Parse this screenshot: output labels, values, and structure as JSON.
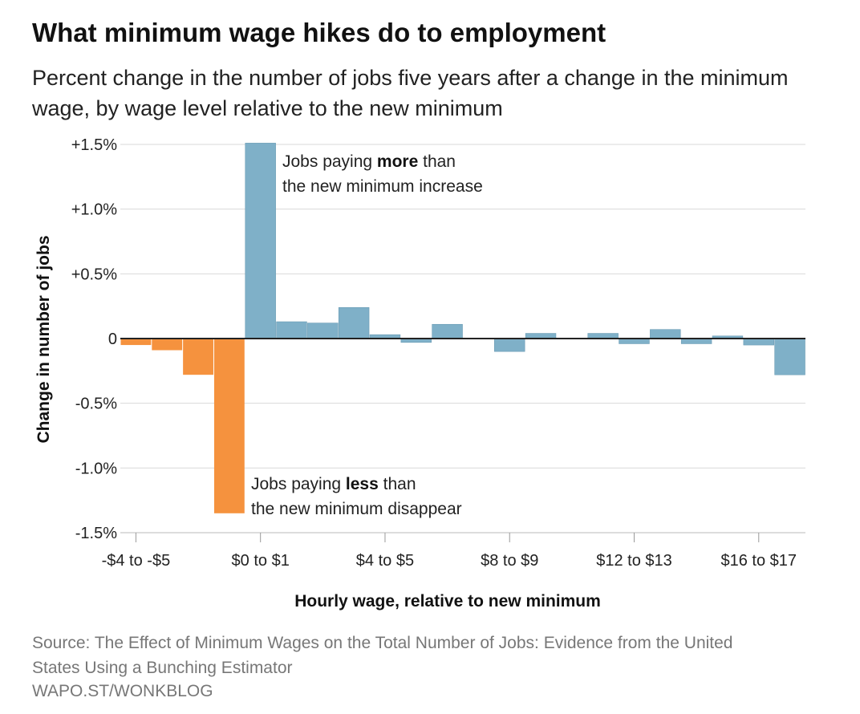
{
  "chart_data": {
    "type": "bar",
    "title": "What minimum wage hikes do to employment",
    "subtitle": "Percent change in the number of jobs five years after a change in the minimum wage, by wage level relative to the new minimum",
    "xlabel": "Hourly wage, relative to new minimum",
    "ylabel": "Change in number of jobs",
    "ylim": [
      -1.5,
      1.5
    ],
    "y_ticks": [
      {
        "value": 1.5,
        "label": "+1.5%"
      },
      {
        "value": 1.0,
        "label": "+1.0%"
      },
      {
        "value": 0.5,
        "label": "+0.5%"
      },
      {
        "value": 0,
        "label": "0"
      },
      {
        "value": -0.5,
        "label": "-0.5%"
      },
      {
        "value": -1.0,
        "label": "-1.0%"
      },
      {
        "value": -1.5,
        "label": "-1.5%"
      }
    ],
    "x_tick_labels": [
      {
        "index": 0,
        "label": "-$4 to -$5"
      },
      {
        "index": 4,
        "label": "$0 to $1"
      },
      {
        "index": 8,
        "label": "$4 to $5"
      },
      {
        "index": 12,
        "label": "$8 to $9"
      },
      {
        "index": 16,
        "label": "$12 to $13"
      },
      {
        "index": 20,
        "label": "$16 to $17"
      }
    ],
    "values": [
      -0.05,
      -0.09,
      -0.28,
      -1.35,
      1.51,
      0.13,
      0.12,
      0.24,
      0.03,
      -0.03,
      0.11,
      0.0,
      -0.1,
      0.04,
      0.0,
      0.04,
      -0.04,
      0.07,
      -0.04,
      0.02,
      -0.05,
      -0.28
    ],
    "grid": true,
    "colors": {
      "negative": "#f5923e",
      "positive": "#7fb0c8",
      "grid": "#d9d9d9",
      "axis": "#222222"
    },
    "annotations": [
      {
        "id": "more",
        "lines": [
          [
            "Jobs paying ",
            "more",
            " than"
          ],
          [
            "the new minimum increase"
          ]
        ]
      },
      {
        "id": "less",
        "lines": [
          [
            "Jobs paying ",
            "less",
            " than"
          ],
          [
            "the new minimum disappear"
          ]
        ]
      }
    ]
  },
  "footer": {
    "source": "Source: The Effect of Minimum Wages on the Total Number of Jobs: Evidence from the United States Using a Bunching Estimator",
    "credit": "WAPO.ST/WONKBLOG"
  }
}
